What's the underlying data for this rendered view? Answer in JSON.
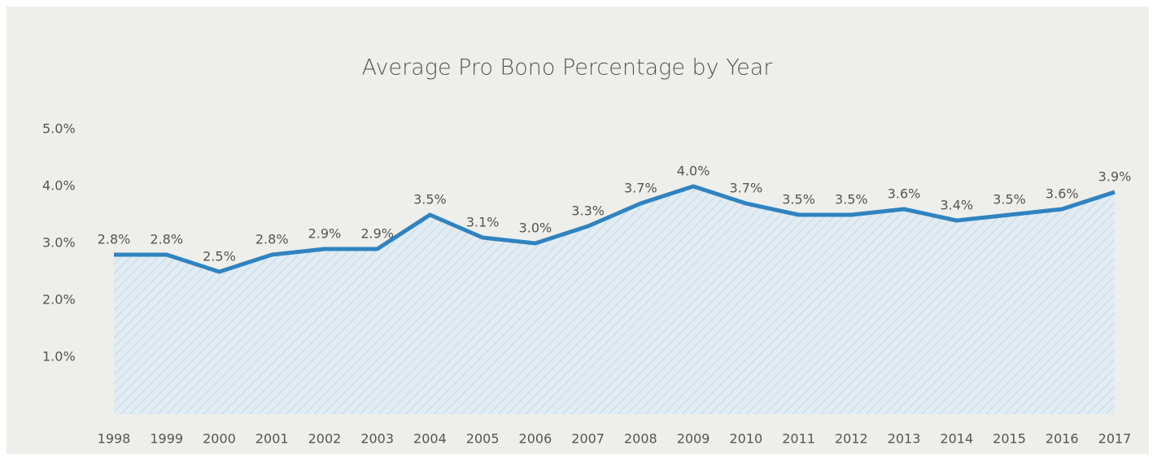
{
  "chart_data": {
    "type": "line",
    "title": "Average Pro Bono Percentage by Year",
    "categories": [
      "1998",
      "1999",
      "2000",
      "2001",
      "2002",
      "2003",
      "2004",
      "2005",
      "2006",
      "2007",
      "2008",
      "2009",
      "2010",
      "2011",
      "2012",
      "2013",
      "2014",
      "2015",
      "2016",
      "2017"
    ],
    "values": [
      2.8,
      2.8,
      2.5,
      2.8,
      2.9,
      2.9,
      3.5,
      3.1,
      3.0,
      3.3,
      3.7,
      4.0,
      3.7,
      3.5,
      3.5,
      3.6,
      3.4,
      3.5,
      3.6,
      3.9
    ],
    "value_labels": [
      "2.8%",
      "2.8%",
      "2.5%",
      "2.8%",
      "2.9%",
      "2.9%",
      "3.5%",
      "3.1%",
      "3.0%",
      "3.3%",
      "3.7%",
      "4.0%",
      "3.7%",
      "3.5%",
      "3.5%",
      "3.6%",
      "3.4%",
      "3.5%",
      "3.6%",
      "3.9%"
    ],
    "color": "#2f83c0",
    "ylim": [
      0,
      5
    ],
    "yticks": [
      {
        "value": 1,
        "label": "1.0%"
      },
      {
        "value": 2,
        "label": "2.0%"
      },
      {
        "value": 3,
        "label": "3.0%"
      },
      {
        "value": 4,
        "label": "4.0%"
      },
      {
        "value": 5,
        "label": "5.0%"
      }
    ],
    "grid": false
  }
}
